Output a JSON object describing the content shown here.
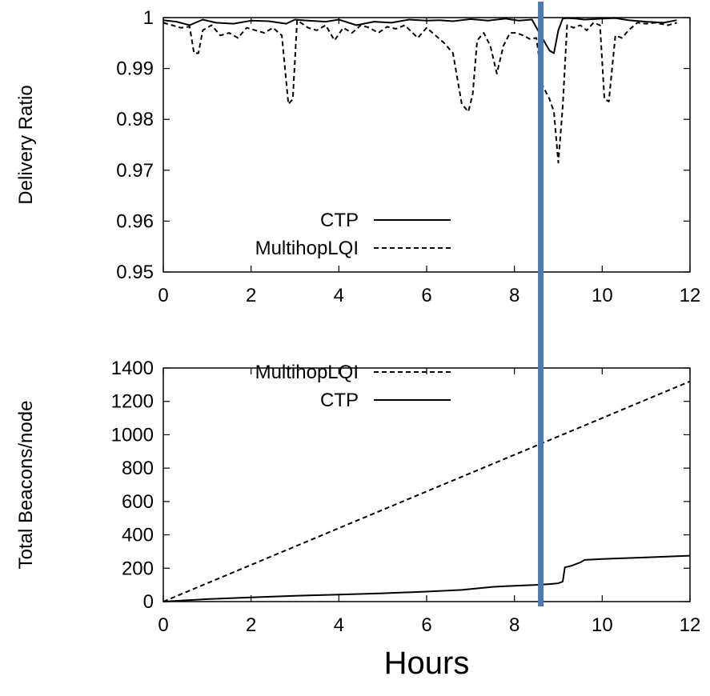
{
  "chart_data": [
    {
      "type": "line",
      "ylabel": "Delivery Ratio",
      "xlim": [
        0,
        12
      ],
      "ylim": [
        0.95,
        1.0
      ],
      "xticks": [
        "0",
        "2",
        "4",
        "6",
        "8",
        "10",
        "12"
      ],
      "yticks": [
        "0.95",
        "0.96",
        "0.97",
        "0.98",
        "0.99",
        "1"
      ],
      "legend_position": "lower-center",
      "series": [
        {
          "name": "CTP",
          "dash": "solid",
          "x": [
            0,
            0.3,
            0.6,
            0.9,
            1.2,
            1.6,
            2.0,
            2.4,
            2.8,
            3.0,
            3.3,
            3.7,
            4.0,
            4.4,
            4.8,
            5.2,
            5.6,
            6.0,
            6.3,
            6.6,
            7.0,
            7.4,
            7.8,
            8.1,
            8.4,
            8.6,
            8.8,
            8.9,
            9.0,
            9.1,
            9.2,
            9.4,
            9.6,
            9.8,
            10.0,
            10.3,
            10.6,
            11.0,
            11.4,
            11.7
          ],
          "y": [
            0.9995,
            0.9992,
            0.9985,
            0.9996,
            0.999,
            0.9988,
            0.9994,
            0.9993,
            0.9988,
            0.9996,
            0.9994,
            0.9992,
            0.9996,
            0.9985,
            0.9992,
            0.999,
            0.9996,
            0.9994,
            0.9995,
            0.9993,
            0.9997,
            0.9994,
            0.9998,
            0.9994,
            0.9996,
            0.9965,
            0.9935,
            0.993,
            0.9975,
            0.9998,
            0.9999,
            0.9998,
            0.9996,
            0.9997,
            0.9998,
            0.9999,
            0.9995,
            0.9992,
            0.999,
            0.9995
          ]
        },
        {
          "name": "MultihopLQI",
          "dash": "dashed",
          "x": [
            0,
            0.2,
            0.4,
            0.6,
            0.7,
            0.8,
            0.9,
            1.1,
            1.3,
            1.5,
            1.7,
            1.9,
            2.1,
            2.3,
            2.5,
            2.7,
            2.85,
            2.95,
            3.05,
            3.3,
            3.5,
            3.7,
            3.9,
            4.1,
            4.3,
            4.5,
            4.7,
            4.9,
            5.1,
            5.3,
            5.5,
            5.8,
            6.0,
            6.2,
            6.4,
            6.6,
            6.8,
            6.95,
            7.05,
            7.15,
            7.3,
            7.45,
            7.6,
            7.75,
            7.9,
            8.05,
            8.2,
            8.35,
            8.5,
            8.65,
            8.8,
            8.9,
            9.0,
            9.1,
            9.2,
            9.35,
            9.5,
            9.65,
            9.8,
            9.95,
            10.05,
            10.15,
            10.3,
            10.45,
            10.6,
            10.8,
            11.0,
            11.2,
            11.5,
            11.7
          ],
          "y": [
            0.999,
            0.9985,
            0.998,
            0.9982,
            0.993,
            0.993,
            0.9975,
            0.9985,
            0.9965,
            0.997,
            0.996,
            0.998,
            0.9975,
            0.997,
            0.998,
            0.9965,
            0.983,
            0.984,
            0.9995,
            0.998,
            0.9975,
            0.9985,
            0.9955,
            0.998,
            0.997,
            0.9985,
            0.998,
            0.997,
            0.9982,
            0.9978,
            0.9985,
            0.996,
            0.998,
            0.9965,
            0.995,
            0.993,
            0.983,
            0.9815,
            0.985,
            0.9955,
            0.997,
            0.9945,
            0.989,
            0.9945,
            0.997,
            0.997,
            0.9965,
            0.9958,
            0.996,
            0.9865,
            0.984,
            0.9815,
            0.9715,
            0.9825,
            0.9985,
            0.998,
            0.9985,
            0.9975,
            0.999,
            0.9985,
            0.984,
            0.9835,
            0.9965,
            0.996,
            0.9975,
            0.999,
            0.9988,
            0.999,
            0.9985,
            0.999
          ]
        }
      ]
    },
    {
      "type": "line",
      "ylabel": "Total Beacons/node",
      "xlabel": "Hours",
      "xlim": [
        0,
        12
      ],
      "ylim": [
        0,
        1400
      ],
      "xticks": [
        "0",
        "2",
        "4",
        "6",
        "8",
        "10",
        "12"
      ],
      "yticks": [
        "0",
        "200",
        "400",
        "600",
        "800",
        "1000",
        "1200",
        "1400"
      ],
      "legend_position": "top-center",
      "series": [
        {
          "name": "MultihopLQI",
          "dash": "dashed",
          "x": [
            0,
            2,
            4,
            6,
            8,
            10,
            12
          ],
          "y": [
            0,
            220,
            440,
            660,
            880,
            1100,
            1320
          ]
        },
        {
          "name": "CTP",
          "dash": "solid",
          "x": [
            0,
            1,
            2,
            3,
            4,
            5,
            6,
            6.8,
            7.5,
            8.0,
            8.5,
            8.8,
            9.0,
            9.1,
            9.15,
            9.3,
            9.5,
            9.6,
            10,
            11,
            12
          ],
          "y": [
            0,
            15,
            25,
            35,
            42,
            50,
            60,
            70,
            88,
            95,
            100,
            105,
            110,
            120,
            205,
            215,
            235,
            250,
            255,
            265,
            275
          ]
        }
      ]
    }
  ],
  "marker": {
    "x": 8.6,
    "color": "#4a7ab5"
  }
}
